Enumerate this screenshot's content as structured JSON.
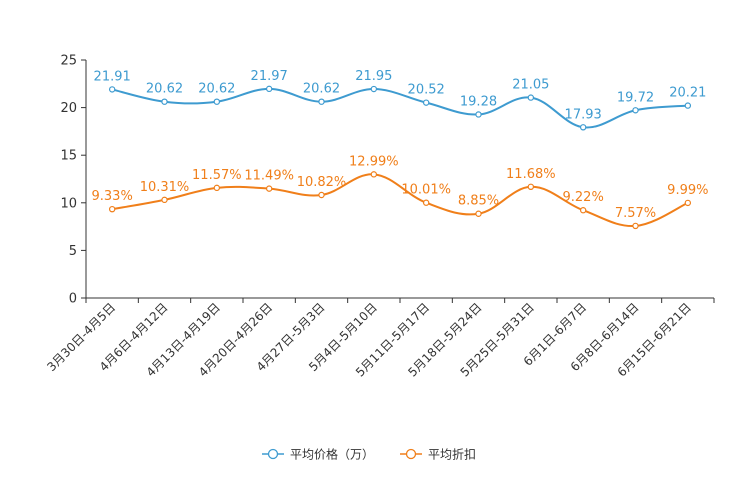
{
  "chart_data": {
    "type": "line",
    "categories": [
      "3月30日-4月5日",
      "4月6日-4月12日",
      "4月13日-4月19日",
      "4月20日-4月26日",
      "4月27日-5月3日",
      "5月4日-5月10日",
      "5月11日-5月17日",
      "5月18日-5月24日",
      "5月25日-5月31日",
      "6月1日-6月7日",
      "6月8日-6月14日",
      "6月15日-6月21日"
    ],
    "ylim": [
      0,
      25
    ],
    "yticks": [
      0,
      5,
      10,
      15,
      20,
      25
    ],
    "series": [
      {
        "name": "平均价格（万）",
        "color": "#3e9bd0",
        "values": [
          21.91,
          20.62,
          20.62,
          21.97,
          20.62,
          21.95,
          20.52,
          19.28,
          21.05,
          17.93,
          19.72,
          20.21
        ],
        "labels": [
          "21.91",
          "20.62",
          "20.62",
          "21.97",
          "20.62",
          "21.95",
          "20.52",
          "19.28",
          "21.05",
          "17.93",
          "19.72",
          "20.21"
        ]
      },
      {
        "name": "平均折扣",
        "color": "#f07f1a",
        "values": [
          9.33,
          10.31,
          11.57,
          11.49,
          10.82,
          12.99,
          10.01,
          8.85,
          11.68,
          9.22,
          7.57,
          9.99
        ],
        "labels": [
          "9.33%",
          "10.31%",
          "11.57%",
          "11.49%",
          "10.82%",
          "12.99%",
          "10.01%",
          "8.85%",
          "11.68%",
          "9.22%",
          "7.57%",
          "9.99%"
        ]
      }
    ],
    "legend": "bottom-center"
  }
}
